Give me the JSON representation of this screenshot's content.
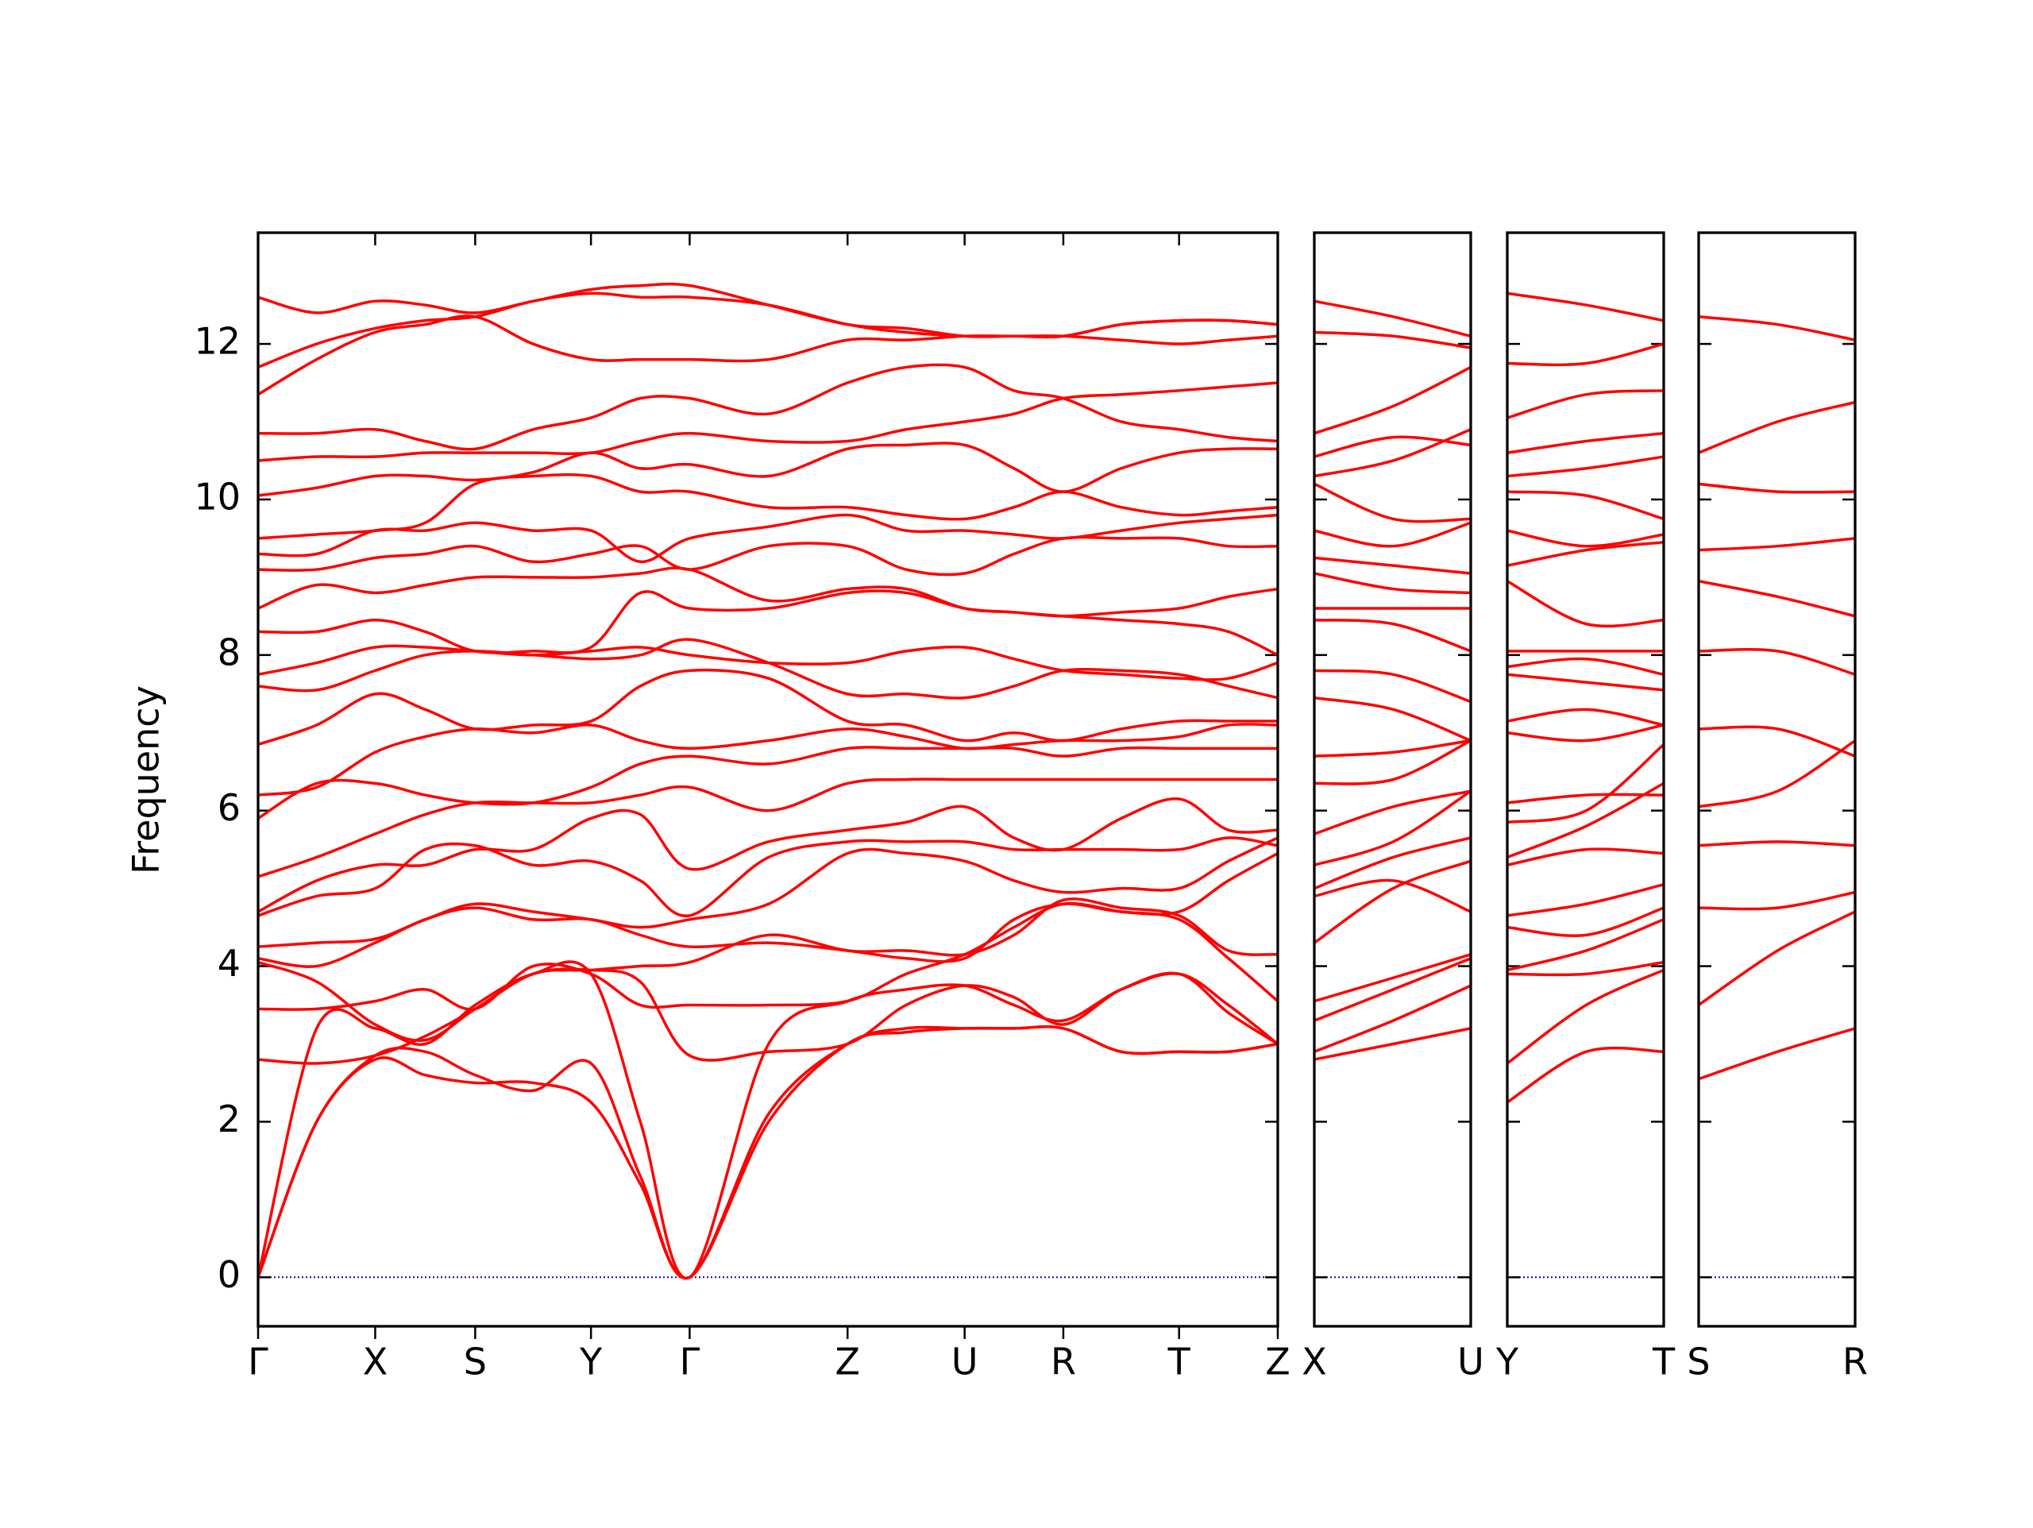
{
  "chart_data": [
    {
      "type": "line",
      "ylabel": "Frequency",
      "color": "#ff0000",
      "zero_line": true,
      "x": [
        0,
        0.445,
        0.89,
        1.27,
        1.65,
        2.09,
        2.53,
        2.905,
        3.28,
        3.88,
        4.48,
        4.925,
        5.37,
        5.745,
        6.12,
        6.56,
        7.0,
        7.375,
        7.75
      ],
      "xlim": [
        0,
        7.75
      ],
      "xticks": [
        {
          "value": 0,
          "label": "Γ"
        },
        {
          "value": 0.89,
          "label": "X"
        },
        {
          "value": 1.65,
          "label": "S"
        },
        {
          "value": 2.53,
          "label": "Y"
        },
        {
          "value": 3.28,
          "label": "Γ"
        },
        {
          "value": 4.48,
          "label": "Z"
        },
        {
          "value": 5.37,
          "label": "U"
        },
        {
          "value": 6.12,
          "label": "R"
        },
        {
          "value": 7.0,
          "label": "T"
        },
        {
          "value": 7.75,
          "label": "Z"
        }
      ],
      "ylim": [
        -0.63,
        13.43
      ],
      "yticks": [
        0,
        2,
        4,
        6,
        8,
        10,
        12
      ],
      "series": [
        {
          "values": [
            0,
            2.0,
            2.8,
            2.6,
            2.5,
            2.5,
            2.25,
            1.2,
            0,
            2.0,
            3.0,
            3.15,
            3.2,
            3.2,
            3.2,
            2.9,
            2.9,
            2.9,
            3.0
          ]
        },
        {
          "values": [
            0,
            2.0,
            2.85,
            2.9,
            2.6,
            2.4,
            2.75,
            1.3,
            0,
            2.1,
            3.0,
            3.2,
            3.2,
            3.2,
            3.2,
            2.9,
            2.9,
            2.9,
            3.0
          ]
        },
        {
          "values": [
            0,
            3.2,
            3.2,
            3.0,
            3.5,
            3.9,
            3.9,
            2.0,
            0,
            3.0,
            3.55,
            3.7,
            3.75,
            3.5,
            3.3,
            3.7,
            3.9,
            3.5,
            3.0
          ]
        },
        {
          "values": [
            2.8,
            2.75,
            2.85,
            3.1,
            3.45,
            3.9,
            3.95,
            3.8,
            2.85,
            2.9,
            3.0,
            3.5,
            3.75,
            3.6,
            3.25,
            3.7,
            3.9,
            3.4,
            3.0
          ]
        },
        {
          "values": [
            3.45,
            3.45,
            3.55,
            3.7,
            3.45,
            4.0,
            3.9,
            3.5,
            3.5,
            3.5,
            3.55,
            3.9,
            4.15,
            4.5,
            4.8,
            4.7,
            4.6,
            4.1,
            3.55
          ]
        },
        {
          "values": [
            4.05,
            3.8,
            3.25,
            3.05,
            3.45,
            3.9,
            3.95,
            4.0,
            4.05,
            4.4,
            4.2,
            4.2,
            4.15,
            4.4,
            4.85,
            4.75,
            4.65,
            4.2,
            4.15
          ]
        },
        {
          "values": [
            4.1,
            4.0,
            4.3,
            4.6,
            4.75,
            4.6,
            4.6,
            4.4,
            4.25,
            4.3,
            4.2,
            4.1,
            4.1,
            4.6,
            4.8,
            4.7,
            4.7,
            5.1,
            5.45
          ]
        },
        {
          "values": [
            4.25,
            4.3,
            4.35,
            4.6,
            4.8,
            4.7,
            4.6,
            4.5,
            4.6,
            4.8,
            5.45,
            5.45,
            5.35,
            5.1,
            4.95,
            5.0,
            5.0,
            5.35,
            5.65
          ]
        },
        {
          "values": [
            4.65,
            4.9,
            5.0,
            5.5,
            5.55,
            5.3,
            5.35,
            5.1,
            4.65,
            5.4,
            5.6,
            5.6,
            5.6,
            5.5,
            5.5,
            5.5,
            5.5,
            5.65,
            5.55
          ]
        },
        {
          "values": [
            4.7,
            5.1,
            5.3,
            5.3,
            5.5,
            5.5,
            5.9,
            5.95,
            5.25,
            5.6,
            5.75,
            5.85,
            6.05,
            5.65,
            5.5,
            5.9,
            6.15,
            5.75,
            5.75
          ]
        },
        {
          "values": [
            5.15,
            5.4,
            5.7,
            5.95,
            6.1,
            6.1,
            6.1,
            6.2,
            6.3,
            6.0,
            6.35,
            6.4,
            6.4,
            6.4,
            6.4,
            6.4,
            6.4,
            6.4,
            6.4
          ]
        },
        {
          "values": [
            5.9,
            6.35,
            6.35,
            6.2,
            6.1,
            6.1,
            6.3,
            6.6,
            6.7,
            6.6,
            6.8,
            6.8,
            6.8,
            6.8,
            6.7,
            6.8,
            6.8,
            6.8,
            6.8
          ]
        },
        {
          "values": [
            6.2,
            6.3,
            6.75,
            6.95,
            7.05,
            7.0,
            7.1,
            6.9,
            6.8,
            6.9,
            7.05,
            6.95,
            6.8,
            6.85,
            6.9,
            6.9,
            6.95,
            7.1,
            7.1
          ]
        },
        {
          "values": [
            6.85,
            7.1,
            7.5,
            7.3,
            7.05,
            7.1,
            7.15,
            7.6,
            7.8,
            7.7,
            7.15,
            7.1,
            6.9,
            7.0,
            6.9,
            7.05,
            7.15,
            7.15,
            7.15
          ]
        },
        {
          "values": [
            7.6,
            7.55,
            7.8,
            8.0,
            8.05,
            8.0,
            7.95,
            8.0,
            8.2,
            7.9,
            7.5,
            7.5,
            7.45,
            7.6,
            7.8,
            7.8,
            7.75,
            7.6,
            7.45
          ]
        },
        {
          "values": [
            7.75,
            7.9,
            8.1,
            8.1,
            8.05,
            8.0,
            8.05,
            8.1,
            8.0,
            7.9,
            7.9,
            8.05,
            8.1,
            7.95,
            7.8,
            7.75,
            7.7,
            7.7,
            7.9
          ]
        },
        {
          "values": [
            8.3,
            8.3,
            8.45,
            8.3,
            8.05,
            8.05,
            8.1,
            8.8,
            8.6,
            8.6,
            8.8,
            8.8,
            8.6,
            8.55,
            8.5,
            8.45,
            8.4,
            8.3,
            8.0
          ]
        },
        {
          "values": [
            8.6,
            8.9,
            8.8,
            8.9,
            9.0,
            9.0,
            9.0,
            9.05,
            9.1,
            8.7,
            8.85,
            8.85,
            8.6,
            8.55,
            8.5,
            8.55,
            8.6,
            8.75,
            8.85
          ]
        },
        {
          "values": [
            9.1,
            9.1,
            9.25,
            9.3,
            9.4,
            9.2,
            9.3,
            9.4,
            9.1,
            9.4,
            9.4,
            9.1,
            9.05,
            9.3,
            9.5,
            9.5,
            9.5,
            9.4,
            9.4
          ]
        },
        {
          "values": [
            9.3,
            9.3,
            9.6,
            9.6,
            9.7,
            9.6,
            9.6,
            9.2,
            9.5,
            9.65,
            9.8,
            9.6,
            9.6,
            9.55,
            9.5,
            9.6,
            9.7,
            9.75,
            9.8
          ]
        },
        {
          "values": [
            9.5,
            9.55,
            9.6,
            9.7,
            10.2,
            10.3,
            10.3,
            10.1,
            10.1,
            9.9,
            9.9,
            9.8,
            9.75,
            9.9,
            10.1,
            9.9,
            9.8,
            9.85,
            9.9
          ]
        },
        {
          "values": [
            10.05,
            10.15,
            10.3,
            10.3,
            10.25,
            10.35,
            10.6,
            10.4,
            10.45,
            10.3,
            10.65,
            10.7,
            10.7,
            10.4,
            10.1,
            10.4,
            10.6,
            10.65,
            10.65
          ]
        },
        {
          "values": [
            10.5,
            10.55,
            10.55,
            10.6,
            10.6,
            10.6,
            10.6,
            10.75,
            10.85,
            10.75,
            10.75,
            10.9,
            11.0,
            11.1,
            11.3,
            11.35,
            11.4,
            11.45,
            11.5
          ]
        },
        {
          "values": [
            10.85,
            10.85,
            10.9,
            10.75,
            10.65,
            10.9,
            11.05,
            11.3,
            11.3,
            11.1,
            11.5,
            11.7,
            11.7,
            11.4,
            11.3,
            11.0,
            10.9,
            10.8,
            10.75
          ]
        },
        {
          "values": [
            11.35,
            11.8,
            12.15,
            12.25,
            12.35,
            12.0,
            11.8,
            11.8,
            11.8,
            11.8,
            12.05,
            12.05,
            12.1,
            12.1,
            12.1,
            12.05,
            12.0,
            12.05,
            12.1
          ]
        },
        {
          "values": [
            11.7,
            12.0,
            12.2,
            12.3,
            12.35,
            12.55,
            12.65,
            12.6,
            12.6,
            12.5,
            12.25,
            12.15,
            12.1,
            12.1,
            12.1,
            12.25,
            12.3,
            12.3,
            12.25
          ]
        },
        {
          "values": [
            12.6,
            12.4,
            12.55,
            12.5,
            12.4,
            12.55,
            12.7,
            12.75,
            12.75,
            12.5,
            12.25,
            12.2,
            12.1,
            12.1,
            12.1,
            12.25,
            12.3,
            12.3,
            12.25
          ]
        }
      ]
    },
    {
      "type": "line",
      "color": "#ff0000",
      "zero_line": true,
      "x": [
        0,
        0.6,
        1.19
      ],
      "xlim": [
        0,
        1.19
      ],
      "xticks": [
        {
          "value": 0,
          "label": "X"
        },
        {
          "value": 1.19,
          "label": "U"
        }
      ],
      "ylim": [
        -0.63,
        13.43
      ],
      "series": [
        {
          "values": [
            2.8,
            3.0,
            3.2
          ]
        },
        {
          "values": [
            2.9,
            3.3,
            3.75
          ]
        },
        {
          "values": [
            3.3,
            3.7,
            4.1
          ]
        },
        {
          "values": [
            3.55,
            3.85,
            4.15
          ]
        },
        {
          "values": [
            4.3,
            5.0,
            5.35
          ]
        },
        {
          "values": [
            4.9,
            5.1,
            4.7
          ]
        },
        {
          "values": [
            5.0,
            5.4,
            5.65
          ]
        },
        {
          "values": [
            5.3,
            5.6,
            6.25
          ]
        },
        {
          "values": [
            5.7,
            6.05,
            6.25
          ]
        },
        {
          "values": [
            6.35,
            6.4,
            6.9
          ]
        },
        {
          "values": [
            6.7,
            6.75,
            6.9
          ]
        },
        {
          "values": [
            7.45,
            7.3,
            6.9
          ]
        },
        {
          "values": [
            7.8,
            7.75,
            7.4
          ]
        },
        {
          "values": [
            8.45,
            8.4,
            8.05
          ]
        },
        {
          "values": [
            8.6,
            8.6,
            8.6
          ]
        },
        {
          "values": [
            9.05,
            8.85,
            8.8
          ]
        },
        {
          "values": [
            9.25,
            9.15,
            9.05
          ]
        },
        {
          "values": [
            9.6,
            9.4,
            9.7
          ]
        },
        {
          "values": [
            10.2,
            9.75,
            9.75
          ]
        },
        {
          "values": [
            10.3,
            10.5,
            10.9
          ]
        },
        {
          "values": [
            10.55,
            10.8,
            10.7
          ]
        },
        {
          "values": [
            10.85,
            11.2,
            11.7
          ]
        },
        {
          "values": [
            12.15,
            12.1,
            11.95
          ]
        },
        {
          "values": [
            12.55,
            12.35,
            12.1
          ]
        }
      ]
    },
    {
      "type": "line",
      "color": "#ff0000",
      "zero_line": true,
      "x": [
        0,
        0.6,
        1.19
      ],
      "xlim": [
        0,
        1.19
      ],
      "xticks": [
        {
          "value": 0,
          "label": "Y"
        },
        {
          "value": 1.19,
          "label": "T"
        }
      ],
      "ylim": [
        -0.63,
        13.43
      ],
      "series": [
        {
          "values": [
            2.25,
            2.9,
            2.9
          ]
        },
        {
          "values": [
            2.75,
            3.5,
            3.95
          ]
        },
        {
          "values": [
            3.9,
            3.9,
            4.05
          ]
        },
        {
          "values": [
            3.95,
            4.2,
            4.6
          ]
        },
        {
          "values": [
            4.5,
            4.4,
            4.75
          ]
        },
        {
          "values": [
            4.65,
            4.8,
            5.05
          ]
        },
        {
          "values": [
            5.3,
            5.5,
            5.45
          ]
        },
        {
          "values": [
            5.4,
            5.8,
            6.35
          ]
        },
        {
          "values": [
            5.85,
            6.0,
            6.85
          ]
        },
        {
          "values": [
            6.1,
            6.2,
            6.2
          ]
        },
        {
          "values": [
            7.0,
            6.9,
            7.1
          ]
        },
        {
          "values": [
            7.15,
            7.3,
            7.1
          ]
        },
        {
          "values": [
            7.75,
            7.65,
            7.55
          ]
        },
        {
          "values": [
            7.85,
            7.95,
            7.75
          ]
        },
        {
          "values": [
            8.05,
            8.05,
            8.05
          ]
        },
        {
          "values": [
            8.95,
            8.4,
            8.45
          ]
        },
        {
          "values": [
            9.15,
            9.35,
            9.45
          ]
        },
        {
          "values": [
            9.6,
            9.4,
            9.55
          ]
        },
        {
          "values": [
            10.1,
            10.05,
            9.75
          ]
        },
        {
          "values": [
            10.3,
            10.4,
            10.55
          ]
        },
        {
          "values": [
            10.6,
            10.75,
            10.85
          ]
        },
        {
          "values": [
            11.05,
            11.35,
            11.4
          ]
        },
        {
          "values": [
            11.75,
            11.75,
            12.0
          ]
        },
        {
          "values": [
            12.65,
            12.5,
            12.3
          ]
        }
      ]
    },
    {
      "type": "line",
      "color": "#ff0000",
      "zero_line": true,
      "x": [
        0,
        0.6,
        1.19
      ],
      "xlim": [
        0,
        1.19
      ],
      "xticks": [
        {
          "value": 0,
          "label": "S"
        },
        {
          "value": 1.19,
          "label": "R"
        }
      ],
      "ylim": [
        -0.63,
        13.43
      ],
      "series": [
        {
          "values": [
            2.55,
            2.9,
            3.2
          ]
        },
        {
          "values": [
            3.5,
            4.2,
            4.7
          ]
        },
        {
          "values": [
            4.75,
            4.75,
            4.95
          ]
        },
        {
          "values": [
            5.55,
            5.6,
            5.55
          ]
        },
        {
          "values": [
            6.05,
            6.25,
            6.9
          ]
        },
        {
          "values": [
            7.05,
            7.05,
            6.7
          ]
        },
        {
          "values": [
            8.05,
            8.05,
            7.75
          ]
        },
        {
          "values": [
            8.95,
            8.75,
            8.5
          ]
        },
        {
          "values": [
            9.35,
            9.4,
            9.5
          ]
        },
        {
          "values": [
            10.2,
            10.1,
            10.1
          ]
        },
        {
          "values": [
            10.6,
            11.0,
            11.25
          ]
        },
        {
          "values": [
            12.35,
            12.25,
            12.05
          ]
        }
      ]
    }
  ]
}
